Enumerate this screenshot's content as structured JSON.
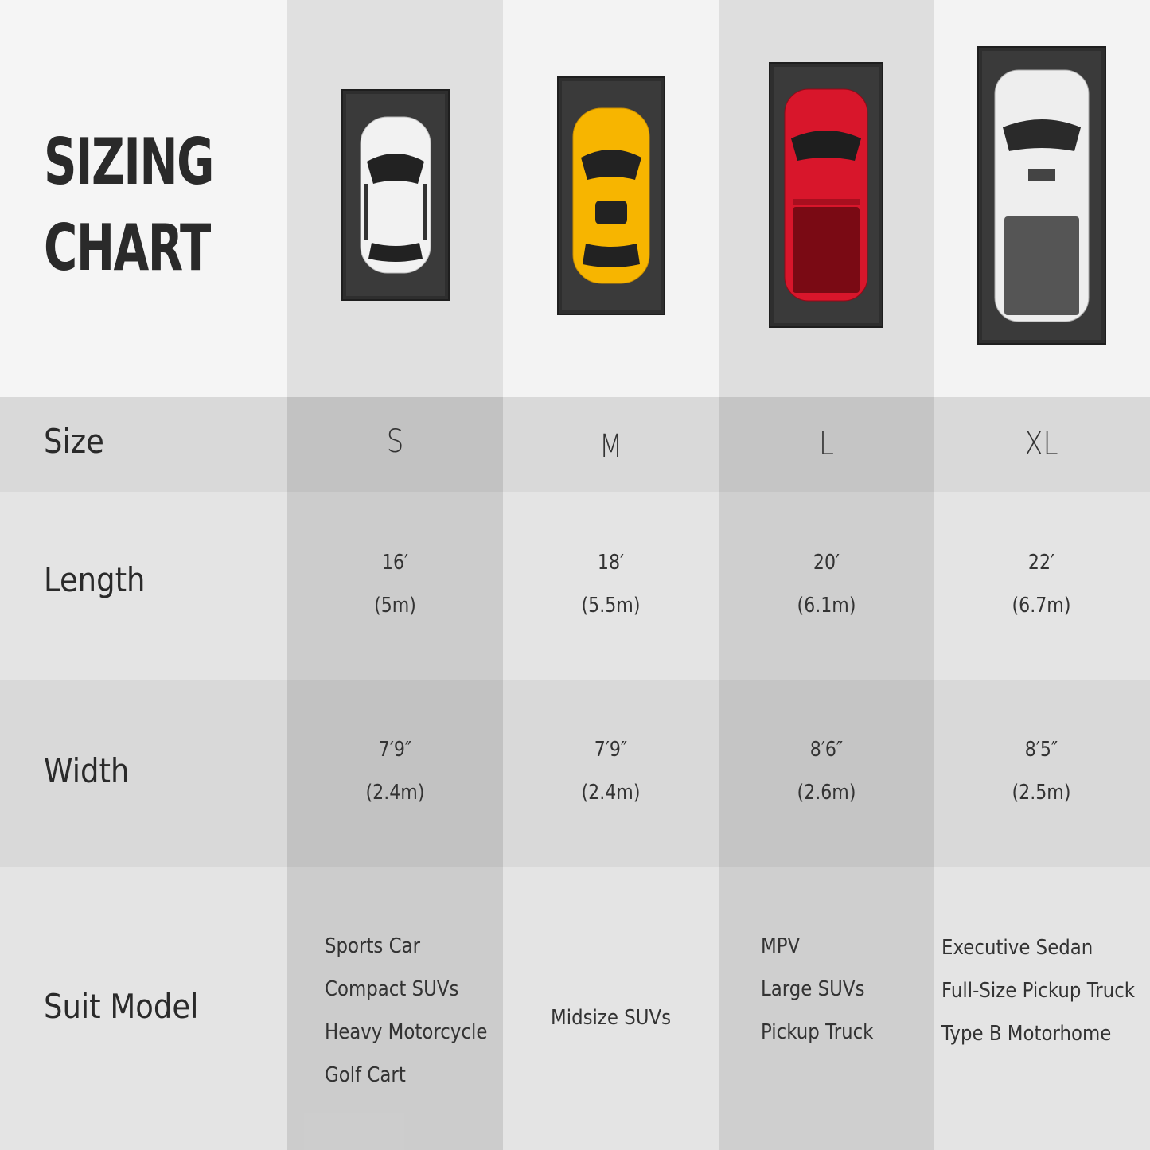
{
  "title": {
    "line1": "SIZING",
    "line2": "CHART"
  },
  "rows": {
    "size": "Size",
    "length": "Length",
    "width": "Width",
    "suit_model": "Suit Model"
  },
  "columns": [
    {
      "size": "S",
      "length_ft": "16′",
      "length_m": "(5m)",
      "width_ft": "7′9″",
      "width_m": "(2.4m)",
      "models": [
        "Sports Car",
        "Compact SUVs",
        "Heavy Motorcycle",
        "Golf Cart"
      ],
      "car_color": "#f2f2f2",
      "car_icon": "white-sedan-icon"
    },
    {
      "size": "M",
      "length_ft": "18′",
      "length_m": "(5.5m)",
      "width_ft": "7′9″",
      "width_m": "(2.4m)",
      "models": [
        "Midsize SUVs"
      ],
      "car_color": "#f7b500",
      "car_icon": "yellow-car-icon"
    },
    {
      "size": "L",
      "length_ft": "20′",
      "length_m": "(6.1m)",
      "width_ft": "8′6″",
      "width_m": "(2.6m)",
      "models": [
        "MPV",
        "Large SUVs",
        "Pickup Truck"
      ],
      "car_color": "#d8162b",
      "car_icon": "red-pickup-icon"
    },
    {
      "size": "XL",
      "length_ft": "22′",
      "length_m": "(6.7m)",
      "width_ft": "8′5″",
      "width_m": "(2.5m)",
      "models": [
        "Executive Sedan",
        "Full-Size Pickup Truck",
        "Type B Motorhome"
      ],
      "car_color": "#eeeeee",
      "car_icon": "white-pickup-icon"
    }
  ]
}
